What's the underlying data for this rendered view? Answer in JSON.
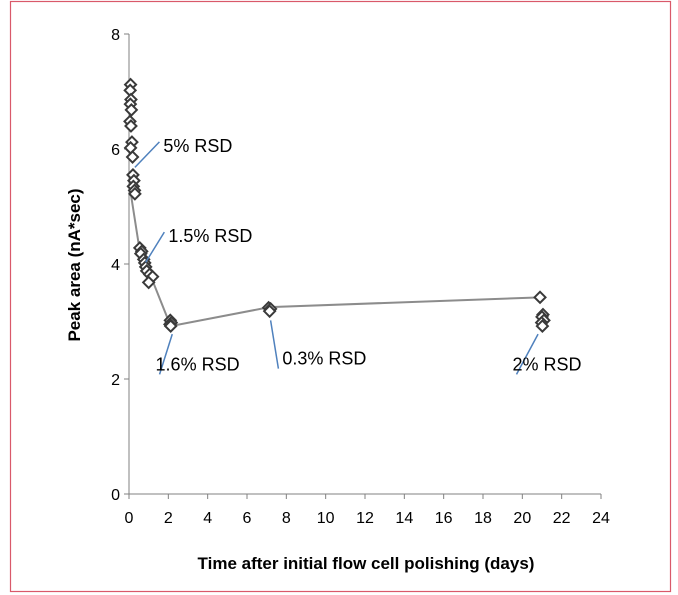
{
  "chart_data": {
    "type": "scatter",
    "title": "",
    "xlabel": "Time after initial flow cell polishing (days)",
    "ylabel": "Peak area (nA*sec)",
    "xlim": [
      0,
      24
    ],
    "ylim": [
      0,
      8
    ],
    "xticks": [
      "0",
      "2",
      "4",
      "6",
      "8",
      "10",
      "12",
      "14",
      "16",
      "18",
      "20",
      "22",
      "24"
    ],
    "yticks": [
      "0",
      "2",
      "4",
      "6",
      "8"
    ],
    "grid": false,
    "legend": "none",
    "colors": {
      "border": "#d9596a",
      "marker_edge": "#3a3a3a",
      "trend_line": "#8c8c8c",
      "annotation_leader": "#4f81bd",
      "axis": "#808080"
    },
    "series": [
      {
        "marker": "diamond",
        "points": [
          [
            0.08,
            7.12
          ],
          [
            0.06,
            7.02
          ],
          [
            0.1,
            6.86
          ],
          [
            0.07,
            6.78
          ],
          [
            0.12,
            6.68
          ],
          [
            0.05,
            6.48
          ],
          [
            0.1,
            6.4
          ],
          [
            0.15,
            6.12
          ],
          [
            0.08,
            6.02
          ],
          [
            0.18,
            5.86
          ],
          [
            0.2,
            5.55
          ],
          [
            0.25,
            5.45
          ],
          [
            0.22,
            5.35
          ],
          [
            0.28,
            5.28
          ],
          [
            0.3,
            5.22
          ],
          [
            0.55,
            4.28
          ],
          [
            0.65,
            4.22
          ],
          [
            0.6,
            4.18
          ],
          [
            0.75,
            4.08
          ],
          [
            0.8,
            4.02
          ],
          [
            0.85,
            3.95
          ],
          [
            0.9,
            3.88
          ],
          [
            1.05,
            3.82
          ],
          [
            1.2,
            3.78
          ],
          [
            1.0,
            3.68
          ],
          [
            2.1,
            3.02
          ],
          [
            2.15,
            2.98
          ],
          [
            2.08,
            2.95
          ],
          [
            2.12,
            2.92
          ],
          [
            7.1,
            3.24
          ],
          [
            7.2,
            3.22
          ],
          [
            7.15,
            3.18
          ],
          [
            20.9,
            3.42
          ],
          [
            21.05,
            3.12
          ],
          [
            21.0,
            3.08
          ],
          [
            21.1,
            3.02
          ],
          [
            20.98,
            2.98
          ],
          [
            21.02,
            2.92
          ]
        ]
      }
    ],
    "trend_line": {
      "x": [
        0.08,
        0.55,
        1.0,
        2.12,
        7.15,
        20.9
      ],
      "y": [
        5.25,
        4.22,
        3.88,
        2.92,
        3.25,
        3.42
      ]
    },
    "annotations": [
      {
        "text": "5% RSD",
        "point": [
          0.3,
          5.68
        ],
        "label_x": 1.75,
        "label_y": 5.95
      },
      {
        "text": "1.5% RSD",
        "point": [
          0.85,
          4.03
        ],
        "label_x": 2.0,
        "label_y": 4.38
      },
      {
        "text": "1.6% RSD",
        "point": [
          2.2,
          2.78
        ],
        "label_x": 1.35,
        "label_y": 2.15
      },
      {
        "text": "0.3% RSD",
        "point": [
          7.2,
          3.02
        ],
        "label_x": 7.8,
        "label_y": 2.25
      },
      {
        "text": "2% RSD",
        "point": [
          20.8,
          2.78
        ],
        "label_x": 19.5,
        "label_y": 2.15
      }
    ]
  }
}
